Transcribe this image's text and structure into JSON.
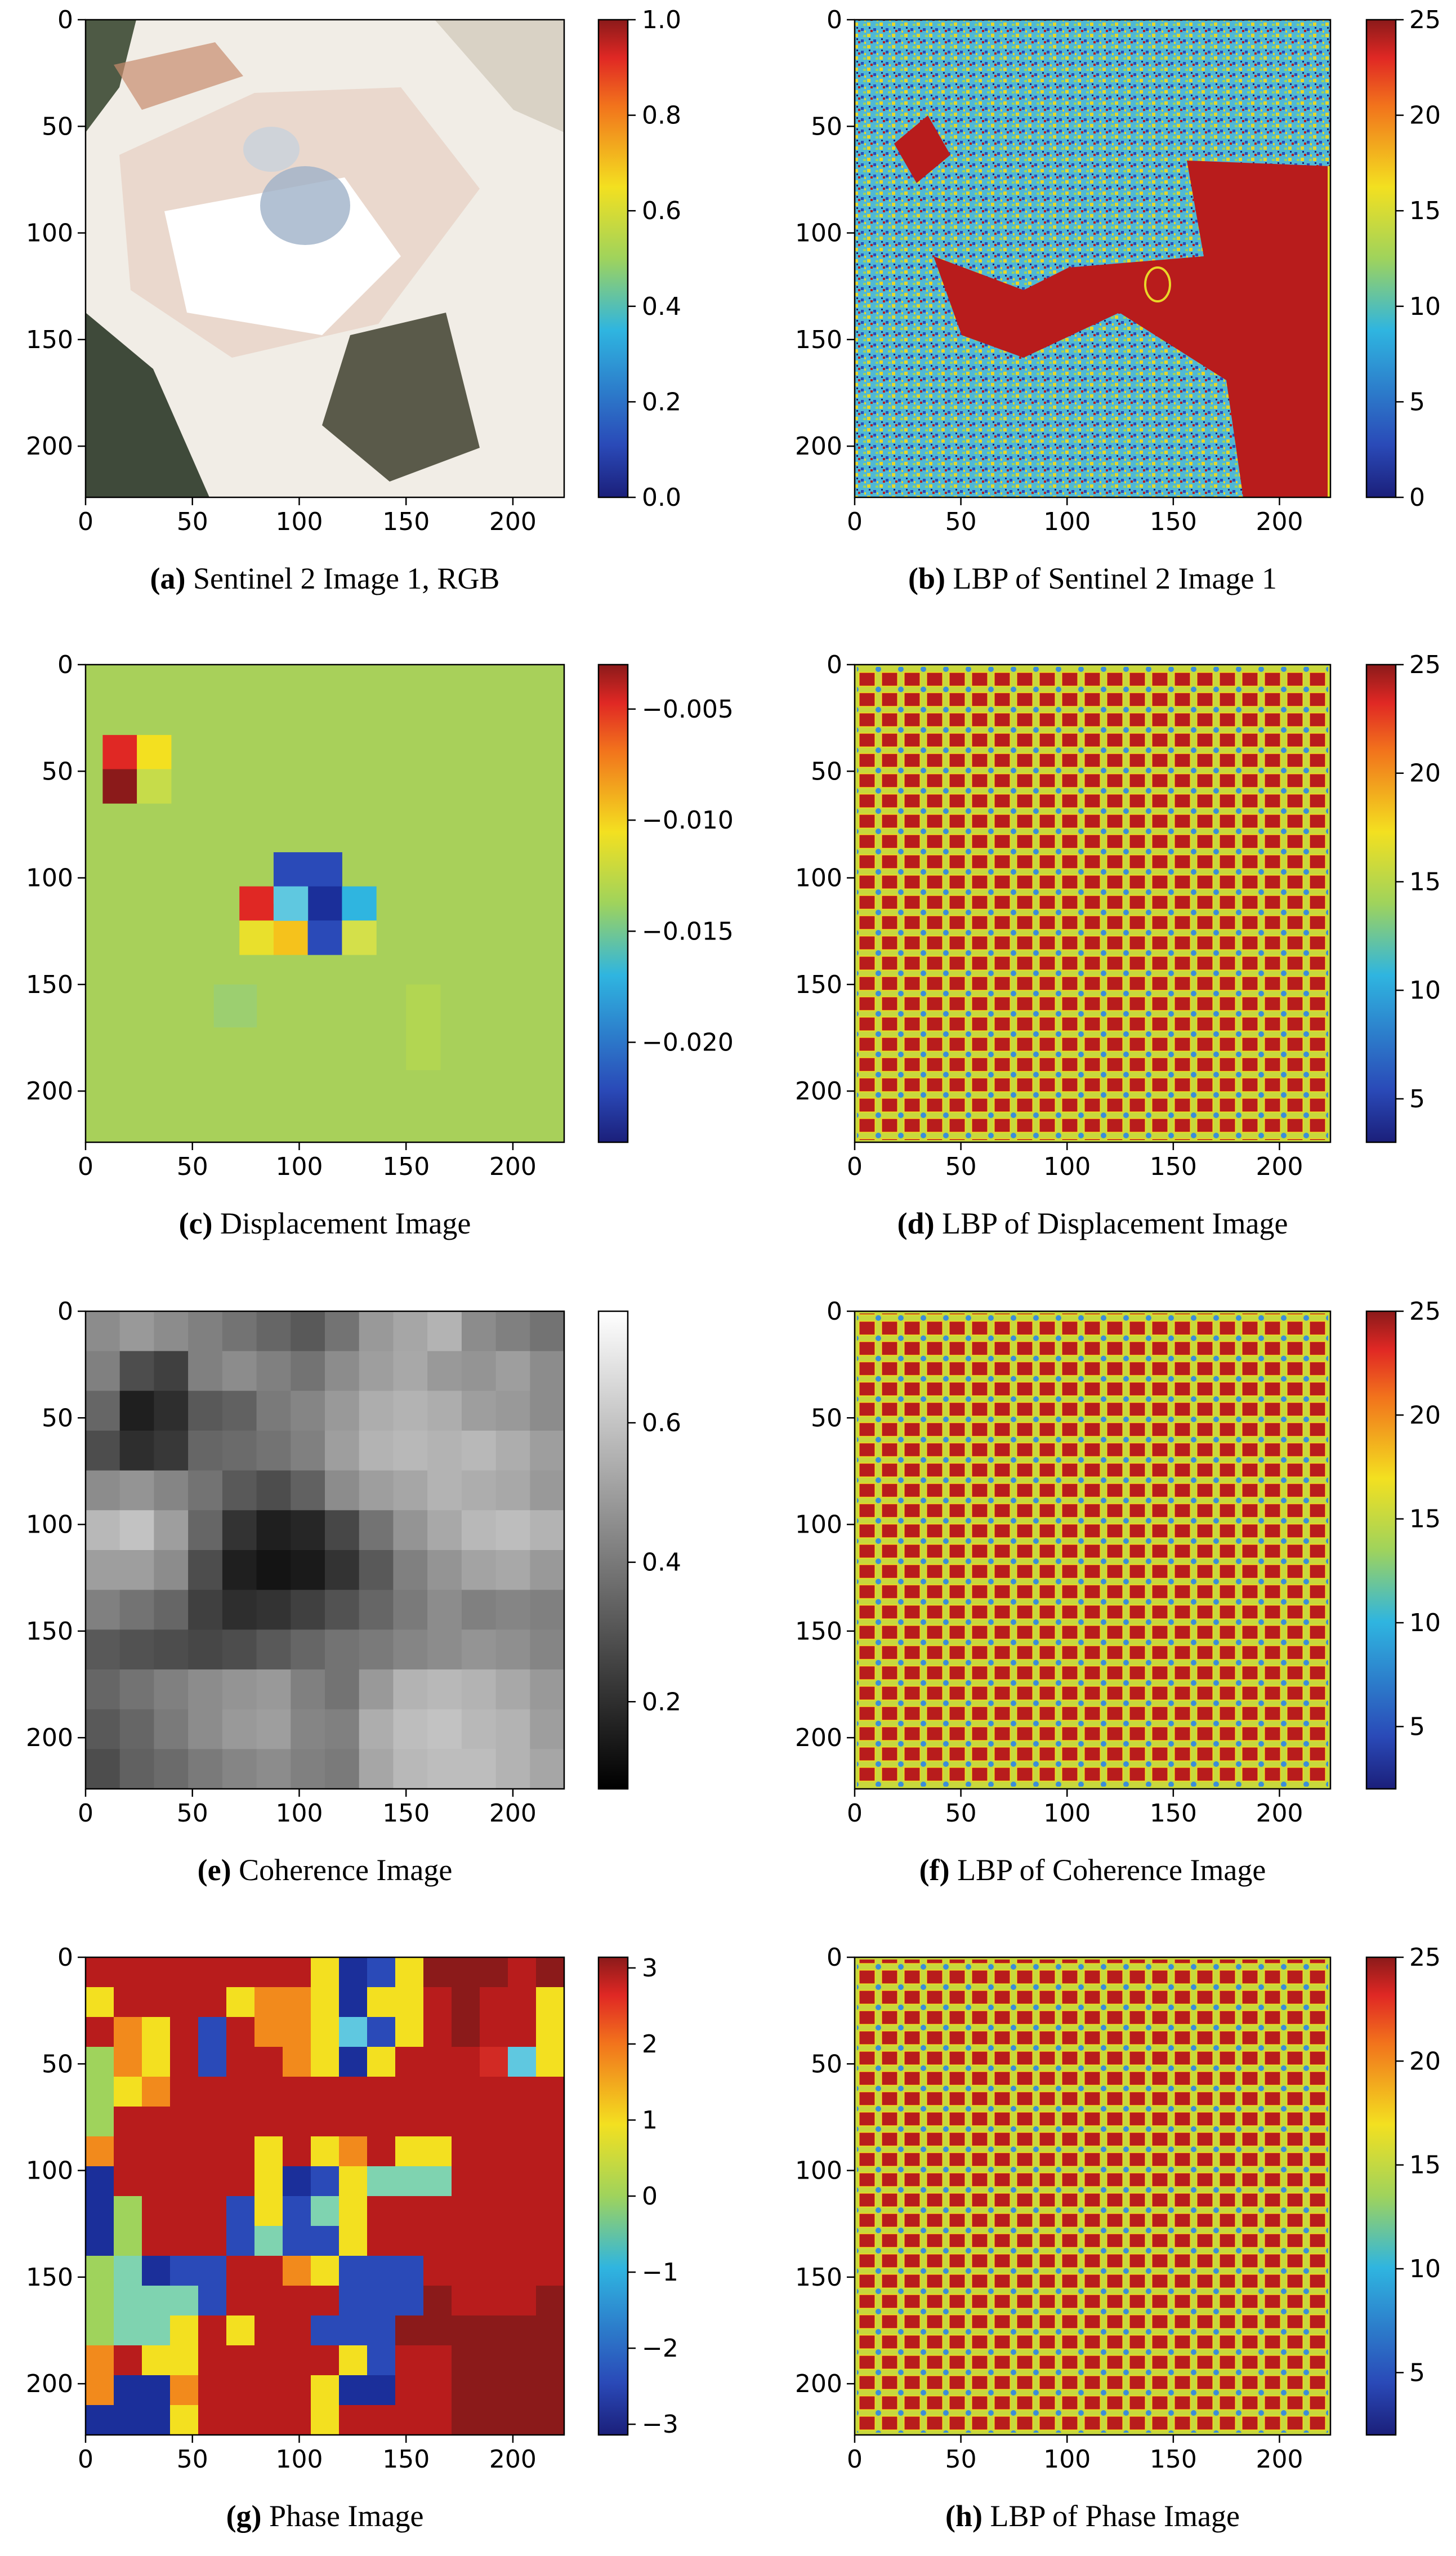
{
  "figure": {
    "panels": [
      {
        "id": "a",
        "caption_letter": "(a)",
        "caption_text": "Sentinel 2 Image 1, RGB",
        "image_kind": "rgb",
        "image_icon": "satellite-rgb-image",
        "x_ticks": [
          "0",
          "50",
          "100",
          "150",
          "200"
        ],
        "y_ticks": [
          "0",
          "50",
          "100",
          "150",
          "200"
        ],
        "colorbar": {
          "cmap": "jet",
          "min": 0.0,
          "max": 1.0,
          "labels": [
            "0.0",
            "0.2",
            "0.4",
            "0.6",
            "0.8",
            "1.0"
          ]
        }
      },
      {
        "id": "b",
        "caption_letter": "(b)",
        "caption_text": "LBP of Sentinel 2 Image 1",
        "image_kind": "lbp-s2",
        "image_icon": "lbp-texture-image",
        "x_ticks": [
          "0",
          "50",
          "100",
          "150",
          "200"
        ],
        "y_ticks": [
          "0",
          "50",
          "100",
          "150",
          "200"
        ],
        "colorbar": {
          "cmap": "jet",
          "min": 0,
          "max": 25,
          "labels": [
            "0",
            "5",
            "10",
            "15",
            "20",
            "25"
          ]
        }
      },
      {
        "id": "c",
        "caption_letter": "(c)",
        "caption_text": "Displacement Image",
        "image_kind": "displacement",
        "image_icon": "displacement-map-image",
        "x_ticks": [
          "0",
          "50",
          "100",
          "150",
          "200"
        ],
        "y_ticks": [
          "0",
          "50",
          "100",
          "150",
          "200"
        ],
        "colorbar": {
          "cmap": "jet",
          "min": -0.0245,
          "max": -0.003,
          "labels": [
            "−0.020",
            "−0.015",
            "−0.010",
            "−0.005"
          ],
          "label_values": [
            -0.02,
            -0.015,
            -0.01,
            -0.005
          ]
        }
      },
      {
        "id": "d",
        "caption_letter": "(d)",
        "caption_text": "LBP of Displacement Image",
        "image_kind": "lbp-grid",
        "image_icon": "lbp-grid-image",
        "x_ticks": [
          "0",
          "50",
          "100",
          "150",
          "200"
        ],
        "y_ticks": [
          "0",
          "50",
          "100",
          "150",
          "200"
        ],
        "colorbar": {
          "cmap": "jet",
          "min": 3,
          "max": 25,
          "labels": [
            "5",
            "10",
            "15",
            "20",
            "25"
          ],
          "label_values": [
            5,
            10,
            15,
            20,
            25
          ]
        }
      },
      {
        "id": "e",
        "caption_letter": "(e)",
        "caption_text": "Coherence Image",
        "image_kind": "coherence",
        "image_icon": "coherence-map-image",
        "x_ticks": [
          "0",
          "50",
          "100",
          "150",
          "200"
        ],
        "y_ticks": [
          "0",
          "50",
          "100",
          "150",
          "200"
        ],
        "colorbar": {
          "cmap": "gray",
          "min": 0.075,
          "max": 0.76,
          "labels": [
            "0.2",
            "0.4",
            "0.6"
          ],
          "label_values": [
            0.2,
            0.4,
            0.6
          ]
        }
      },
      {
        "id": "f",
        "caption_letter": "(f)",
        "caption_text": "LBP of Coherence Image",
        "image_kind": "lbp-grid",
        "image_icon": "lbp-grid-image",
        "x_ticks": [
          "0",
          "50",
          "100",
          "150",
          "200"
        ],
        "y_ticks": [
          "0",
          "50",
          "100",
          "150",
          "200"
        ],
        "colorbar": {
          "cmap": "jet",
          "min": 2,
          "max": 25,
          "labels": [
            "5",
            "10",
            "15",
            "20",
            "25"
          ],
          "label_values": [
            5,
            10,
            15,
            20,
            25
          ]
        }
      },
      {
        "id": "g",
        "caption_letter": "(g)",
        "caption_text": "Phase Image",
        "image_kind": "phase",
        "image_icon": "phase-map-image",
        "x_ticks": [
          "0",
          "50",
          "100",
          "150",
          "200"
        ],
        "y_ticks": [
          "0",
          "50",
          "100",
          "150",
          "200"
        ],
        "colorbar": {
          "cmap": "jet",
          "min": -3.14,
          "max": 3.14,
          "labels": [
            "−3",
            "−2",
            "−1",
            "0",
            "1",
            "2",
            "3"
          ],
          "label_values": [
            -3,
            -2,
            -1,
            0,
            1,
            2,
            3
          ]
        }
      },
      {
        "id": "h",
        "caption_letter": "(h)",
        "caption_text": "LBP of Phase Image",
        "image_kind": "lbp-grid",
        "image_icon": "lbp-grid-image",
        "x_ticks": [
          "0",
          "50",
          "100",
          "150",
          "200"
        ],
        "y_ticks": [
          "0",
          "50",
          "100",
          "150",
          "200"
        ],
        "colorbar": {
          "cmap": "jet",
          "min": 2,
          "max": 25,
          "labels": [
            "5",
            "10",
            "15",
            "20",
            "25"
          ],
          "label_values": [
            5,
            10,
            15,
            20,
            25
          ]
        }
      }
    ]
  }
}
